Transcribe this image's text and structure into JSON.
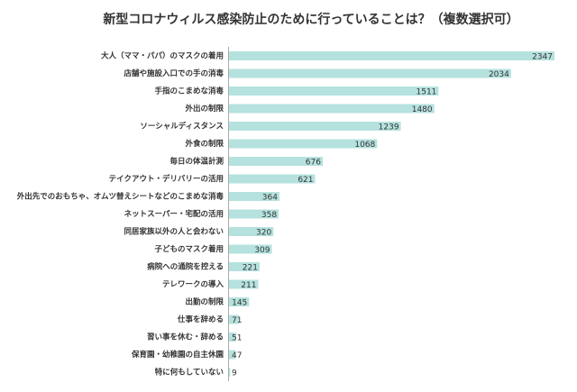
{
  "chart_data": {
    "type": "bar",
    "orientation": "horizontal",
    "title": "新型コロナウィルス感染防止のために行っていることは？（複数選択可）",
    "categories": [
      "大人（ママ・パパ）のマスクの着用",
      "店舗や施設入口での手の消毒",
      "手指のこまめな消毒",
      "外出の制限",
      "ソーシャルディスタンス",
      "外食の制限",
      "毎日の体温計測",
      "テイクアウト・デリバリーの活用",
      "外出先でのおもちゃ、オムツ替えシートなどのこまめな消毒",
      "ネットスーパー・宅配の活用",
      "同居家族以外の人と会わない",
      "子どものマスク着用",
      "病院への通院を控える",
      "テレワークの導入",
      "出勤の制限",
      "仕事を辞める",
      "習い事を休む・辞める",
      "保育園・幼稚園の自主休園",
      "特に何もしていない"
    ],
    "values": [
      2347,
      2034,
      1511,
      1480,
      1239,
      1068,
      676,
      621,
      364,
      358,
      320,
      309,
      221,
      211,
      145,
      71,
      51,
      47,
      9
    ],
    "color": "#b5e2de"
  }
}
